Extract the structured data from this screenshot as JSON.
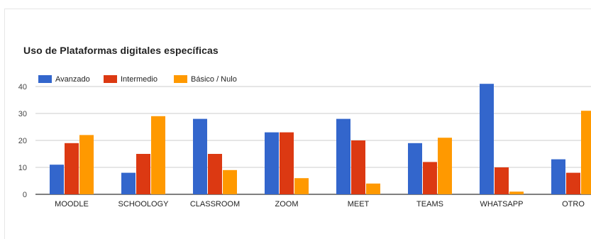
{
  "chart_data": {
    "type": "bar",
    "title": "Uso de Plataformas digitales específicas",
    "categories": [
      "MOODLE",
      "SCHOOLOGY",
      "CLASSROOM",
      "ZOOM",
      "MEET",
      "TEAMS",
      "WHATSAPP",
      "OTRO"
    ],
    "series": [
      {
        "name": "Avanzado",
        "color": "#3366cc",
        "values": [
          11,
          8,
          28,
          23,
          28,
          19,
          41,
          13
        ]
      },
      {
        "name": "Intermedio",
        "color": "#dc3912",
        "values": [
          19,
          15,
          15,
          23,
          20,
          12,
          10,
          8
        ]
      },
      {
        "name": "Básico / Nulo",
        "color": "#ff9900",
        "values": [
          22,
          29,
          9,
          6,
          4,
          21,
          1,
          31
        ]
      }
    ],
    "ylim": [
      0,
      40
    ],
    "yticks": [
      "0",
      "10",
      "20",
      "30",
      "40"
    ],
    "xlabel": "",
    "ylabel": "",
    "grid": true,
    "legend_position": "top-left"
  }
}
